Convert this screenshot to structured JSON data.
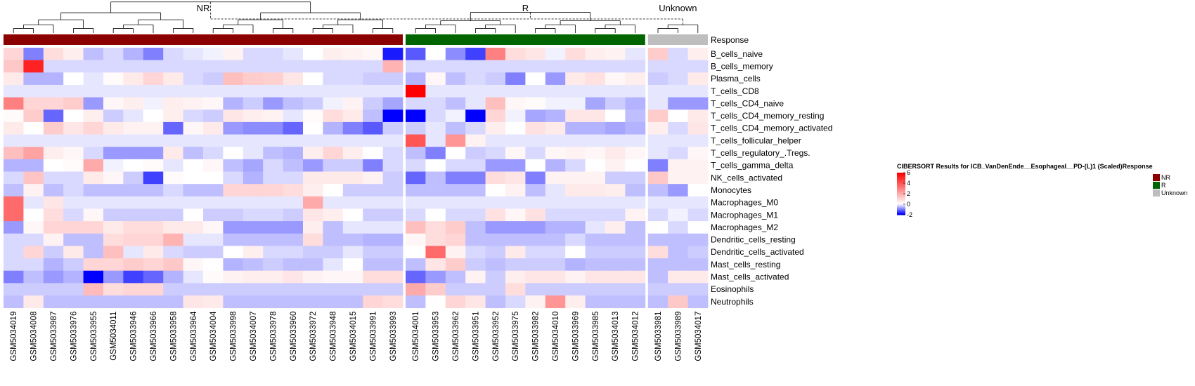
{
  "chart_data": {
    "type": "heatmap",
    "title": "CIBERSORT Results for ICB_VanDenEnde__Esophageal__PD-(L)1 (Scaled)",
    "annotation_label": "Response",
    "legend_title": "Response",
    "groups": [
      {
        "name": "NR",
        "color": "#8B0000",
        "count": 20
      },
      {
        "name": "R",
        "color": "#006400",
        "count": 12
      },
      {
        "name": "Unknown",
        "color": "#BEBEBE",
        "count": 3
      }
    ],
    "columns": [
      "GSM5034019",
      "GSM5034008",
      "GSM5033987",
      "GSM5033976",
      "GSM5033955",
      "GSM5034011",
      "GSM5033946",
      "GSM5033966",
      "GSM5033958",
      "GSM5033964",
      "GSM5034004",
      "GSM5033998",
      "GSM5034007",
      "GSM5033978",
      "GSM5033960",
      "GSM5033972",
      "GSM5033948",
      "GSM5034015",
      "GSM5033991",
      "GSM5033993",
      "GSM5034001",
      "GSM5033953",
      "GSM5033962",
      "GSM5033951",
      "GSM5033952",
      "GSM5033975",
      "GSM5033982",
      "GSM5034010",
      "GSM5033969",
      "GSM5033985",
      "GSM5034013",
      "GSM5034012",
      "GSM5033981",
      "GSM5033989",
      "GSM5034017"
    ],
    "rows": [
      "B_cells_naive",
      "B_cells_memory",
      "Plasma_cells",
      "T_cells_CD8",
      "T_cells_CD4_naive",
      "T_cells_CD4_memory_resting",
      "T_cells_CD4_memory_activated",
      "T_cells_follicular_helper",
      "T_cells_regulatory_.Tregs.",
      "T_cells_gamma_delta",
      "NK_cells_activated",
      "Monocytes",
      "Macrophages_M0",
      "Macrophages_M1",
      "Macrophages_M2",
      "Dendritic_cells_resting",
      "Dendritic_cells_activated",
      "Mast_cells_resting",
      "Mast_cells_activated",
      "Eosinophils",
      "Neutrophils"
    ],
    "values": [
      [
        1.0,
        -1.0,
        0.8,
        0.4,
        -0.5,
        -0.3,
        -0.6,
        -1.0,
        -0.3,
        -0.2,
        -0.1,
        0.3,
        -0.3,
        -0.3,
        -0.2,
        0.0,
        0.4,
        0.3,
        0.2,
        -1.8,
        -1.3,
        0.0,
        -0.9,
        -1.5,
        3.0,
        0.8,
        0.6,
        -0.1,
        0.8,
        0.4,
        0.3,
        -0.2,
        1.2,
        -0.3,
        0.4
      ],
      [
        1.3,
        5.2,
        -0.3,
        -0.3,
        -0.3,
        -0.3,
        -0.3,
        -0.3,
        -0.3,
        -0.3,
        -0.3,
        -0.3,
        -0.3,
        -0.3,
        -0.3,
        -0.3,
        -0.3,
        -0.3,
        -0.3,
        1.8,
        -0.3,
        -0.3,
        -0.3,
        -0.3,
        -0.3,
        -0.3,
        -0.3,
        -0.3,
        -0.3,
        -0.3,
        -0.3,
        -0.3,
        -0.3,
        -0.3,
        -0.3
      ],
      [
        0.5,
        -0.6,
        -0.6,
        0.0,
        -0.2,
        0.1,
        0.5,
        1.0,
        0.5,
        -0.3,
        -0.4,
        1.5,
        1.2,
        1.1,
        0.6,
        0.0,
        -0.3,
        -0.3,
        -0.4,
        -0.4,
        -0.6,
        0.2,
        -0.5,
        -0.3,
        -0.4,
        -1.0,
        0.0,
        -0.8,
        0.5,
        0.7,
        0.2,
        0.4,
        -0.4,
        -0.3,
        0.5
      ],
      [
        -0.2,
        -0.2,
        -0.2,
        -0.2,
        -0.2,
        -0.2,
        -0.2,
        -0.2,
        -0.2,
        -0.2,
        -0.2,
        -0.2,
        -0.2,
        -0.2,
        -0.2,
        -0.2,
        -0.2,
        -0.2,
        -0.2,
        -0.2,
        6.0,
        -0.2,
        -0.2,
        -0.2,
        -0.2,
        -0.2,
        -0.2,
        -0.2,
        -0.2,
        -0.2,
        -0.2,
        -0.2,
        -0.2,
        -0.2,
        -0.2
      ],
      [
        3.0,
        1.0,
        1.0,
        1.2,
        -0.8,
        0.2,
        0.4,
        -0.1,
        0.4,
        0.3,
        0.2,
        -0.6,
        -0.4,
        -0.8,
        -0.5,
        -0.4,
        -0.1,
        0.3,
        -0.4,
        -0.7,
        -0.3,
        -0.3,
        -0.5,
        -0.2,
        1.5,
        0.2,
        0.1,
        -0.1,
        -0.1,
        -0.7,
        -0.4,
        -0.6,
        -0.2,
        -0.8,
        -0.8
      ],
      [
        0.1,
        1.2,
        -1.2,
        0.0,
        0.4,
        -0.4,
        -0.2,
        0.0,
        0.4,
        -0.3,
        -0.4,
        0.6,
        0.4,
        0.3,
        -0.2,
        0.1,
        0.8,
        0.5,
        -0.5,
        -2.0,
        -2.5,
        -0.3,
        -0.1,
        -2.5,
        1.0,
        -0.1,
        -0.7,
        -0.6,
        0.6,
        0.6,
        0.0,
        -0.5,
        1.2,
        0.0,
        0.5
      ],
      [
        0.5,
        0.0,
        1.2,
        0.6,
        1.0,
        0.5,
        0.3,
        0.3,
        -1.2,
        0.2,
        0.5,
        -0.8,
        -0.9,
        -0.9,
        -1.2,
        0.0,
        -0.6,
        -1.0,
        -1.3,
        -0.4,
        -0.4,
        -0.2,
        -0.5,
        -0.3,
        0.4,
        0.0,
        0.7,
        0.5,
        -0.6,
        -0.6,
        -0.7,
        -0.6,
        0.4,
        -0.3,
        0.6
      ],
      [
        -0.2,
        -0.2,
        -0.2,
        -0.2,
        -0.2,
        -0.2,
        -0.2,
        -0.2,
        -0.2,
        -0.2,
        -0.2,
        -0.2,
        -0.2,
        -0.2,
        -0.2,
        -0.2,
        -0.2,
        -0.2,
        -0.2,
        -0.2,
        4.0,
        -0.2,
        2.5,
        0.3,
        -0.2,
        -0.2,
        -0.2,
        -0.2,
        -0.2,
        -0.2,
        -0.2,
        -0.2,
        -0.2,
        -0.2,
        -0.2
      ],
      [
        1.5,
        2.2,
        0.4,
        0.2,
        -0.3,
        -0.8,
        -0.8,
        -0.8,
        0.5,
        -0.5,
        -0.3,
        0.0,
        -0.2,
        -0.5,
        -0.6,
        0.4,
        1.0,
        0.4,
        0.0,
        -0.3,
        -0.5,
        -1.0,
        0.0,
        -0.4,
        -0.3,
        0.2,
        -0.3,
        0.2,
        0.3,
        0.2,
        0.5,
        0.2,
        -0.2,
        -0.3,
        0.2
      ],
      [
        -0.6,
        -0.6,
        0.0,
        0.1,
        2.0,
        -0.1,
        0.0,
        0.1,
        -0.2,
        0.0,
        0.2,
        -0.5,
        -0.7,
        -0.3,
        -0.5,
        -0.8,
        -0.4,
        -0.4,
        -1.0,
        -0.3,
        -0.3,
        0.0,
        -0.3,
        -0.3,
        -0.8,
        -0.8,
        0.0,
        -0.6,
        -0.3,
        0.0,
        0.3,
        0.0,
        -1.0,
        0.3,
        0.3
      ],
      [
        -0.3,
        1.4,
        -0.3,
        -0.3,
        0.5,
        0.2,
        -0.4,
        -1.5,
        0.1,
        0.0,
        0.0,
        -0.3,
        -0.6,
        -0.3,
        -0.3,
        0.5,
        0.5,
        0.5,
        0.3,
        -0.4,
        -1.2,
        -0.5,
        -1.0,
        -1.0,
        0.8,
        0.6,
        -1.0,
        0.3,
        0.3,
        0.3,
        -0.4,
        -0.4,
        1.3,
        0.3,
        0.3
      ],
      [
        -0.5,
        0.3,
        -0.5,
        -0.3,
        -0.5,
        -0.5,
        -0.5,
        -0.5,
        -0.3,
        -0.5,
        -0.5,
        1.0,
        1.0,
        1.0,
        0.8,
        0.4,
        0.0,
        -0.4,
        -0.4,
        -0.4,
        -0.5,
        -0.5,
        -0.5,
        -0.5,
        0.0,
        0.3,
        -0.5,
        -0.2,
        0.5,
        0.5,
        0.4,
        -0.5,
        -0.5,
        -0.8,
        0.0
      ],
      [
        3.5,
        -0.2,
        0.6,
        -0.2,
        -0.2,
        -0.2,
        -0.2,
        -0.2,
        -0.2,
        -0.2,
        -0.2,
        -0.2,
        -0.2,
        -0.2,
        -0.2,
        2.0,
        -0.2,
        -0.2,
        -0.2,
        -0.2,
        -0.2,
        -0.2,
        -0.2,
        -0.2,
        -0.2,
        -0.2,
        -0.2,
        -0.2,
        -0.2,
        -0.2,
        -0.2,
        -0.2,
        -0.2,
        -0.2,
        -0.2
      ],
      [
        3.5,
        0.0,
        0.8,
        -0.3,
        0.2,
        -0.4,
        -0.4,
        -0.4,
        -0.4,
        0.0,
        -0.4,
        -0.4,
        -0.3,
        -0.3,
        -0.4,
        0.6,
        0.4,
        0.0,
        -0.4,
        -0.4,
        -0.3,
        0.0,
        -0.3,
        -0.3,
        0.7,
        0.2,
        0.7,
        -0.3,
        -0.3,
        -0.3,
        -0.3,
        0.3,
        -0.3,
        -0.1,
        -0.3
      ],
      [
        -0.8,
        0.2,
        1.0,
        1.0,
        1.0,
        0.5,
        0.8,
        0.8,
        0.5,
        0.5,
        0.2,
        -0.8,
        -0.8,
        -0.8,
        -0.8,
        0.4,
        -0.5,
        -0.2,
        -0.2,
        -0.2,
        1.5,
        0.8,
        1.2,
        -0.5,
        -0.8,
        -0.8,
        -0.8,
        -0.6,
        -0.6,
        -0.2,
        0.4,
        -0.5,
        0.0,
        -0.3,
        0.0
      ],
      [
        -0.3,
        -0.3,
        0.3,
        -0.5,
        -0.5,
        0.8,
        1.0,
        1.0,
        1.8,
        -0.2,
        -0.2,
        -0.5,
        -0.5,
        -0.5,
        -0.5,
        0.8,
        -0.5,
        -0.5,
        -0.6,
        -0.6,
        0.2,
        0.8,
        1.0,
        -0.5,
        -0.5,
        -0.5,
        -0.5,
        -0.5,
        -0.3,
        -0.5,
        -0.5,
        -0.5,
        -0.5,
        -0.5,
        -0.5
      ],
      [
        -0.3,
        1.0,
        -0.4,
        0.5,
        -0.5,
        1.5,
        -0.2,
        0.5,
        -0.3,
        -0.4,
        -0.4,
        0.0,
        0.4,
        -0.3,
        -0.3,
        -0.4,
        -0.4,
        -0.2,
        -0.4,
        -0.4,
        0.0,
        3.5,
        0.3,
        -0.3,
        -0.4,
        0.5,
        -0.3,
        -0.3,
        0.0,
        -0.4,
        -0.4,
        -0.4,
        0.8,
        -0.5,
        -0.4
      ],
      [
        -0.3,
        -0.3,
        -0.6,
        -0.4,
        1.0,
        1.0,
        1.2,
        1.0,
        1.3,
        0.2,
        0.0,
        -0.6,
        -0.5,
        -0.4,
        -0.5,
        -0.5,
        -0.2,
        0.0,
        -0.5,
        -0.5,
        -0.5,
        0.6,
        1.2,
        -0.4,
        -0.5,
        -0.4,
        -0.4,
        -0.4,
        -0.6,
        -0.5,
        -0.5,
        -0.5,
        -0.5,
        -0.5,
        -0.5
      ],
      [
        -1.0,
        -0.5,
        -0.8,
        -0.6,
        -2.0,
        -0.8,
        -1.5,
        -1.2,
        -0.6,
        -0.2,
        0.1,
        0.3,
        0.4,
        0.4,
        0.6,
        0.3,
        0.2,
        0.2,
        0.8,
        0.8,
        -1.2,
        -0.8,
        -0.5,
        0.3,
        -0.4,
        0.4,
        0.6,
        0.6,
        0.3,
        0.6,
        0.6,
        0.6,
        -0.5,
        0.5,
        0.5
      ],
      [
        -0.4,
        -0.4,
        -0.4,
        -0.4,
        1.6,
        0.8,
        1.0,
        1.0,
        -0.4,
        -0.4,
        -0.4,
        -0.4,
        -0.4,
        -0.4,
        -0.4,
        -0.4,
        -0.4,
        -0.4,
        -0.4,
        -0.4,
        2.0,
        1.2,
        -0.4,
        -0.4,
        -0.4,
        0.8,
        -0.4,
        -0.4,
        -0.4,
        -0.4,
        -0.4,
        -0.4,
        -0.4,
        -0.4,
        -0.4
      ],
      [
        -0.5,
        0.5,
        -0.5,
        -0.5,
        -0.5,
        -0.5,
        -0.5,
        -0.5,
        -0.5,
        0.6,
        0.5,
        -0.5,
        -0.5,
        -0.5,
        -0.5,
        -0.5,
        -0.5,
        -0.5,
        1.0,
        0.8,
        -0.5,
        0.0,
        1.0,
        0.6,
        -0.5,
        -0.3,
        0.3,
        2.5,
        0.4,
        -0.5,
        -0.5,
        -0.5,
        -0.5,
        1.3,
        -0.5
      ]
    ],
    "color_scale": {
      "min": -2,
      "mid": 0,
      "max": 6,
      "low_color": "#0000FF",
      "mid_color": "#FFFFFF",
      "high_color": "#FF0000"
    },
    "legend_ticks": [
      6,
      4,
      2,
      0,
      -2
    ]
  }
}
